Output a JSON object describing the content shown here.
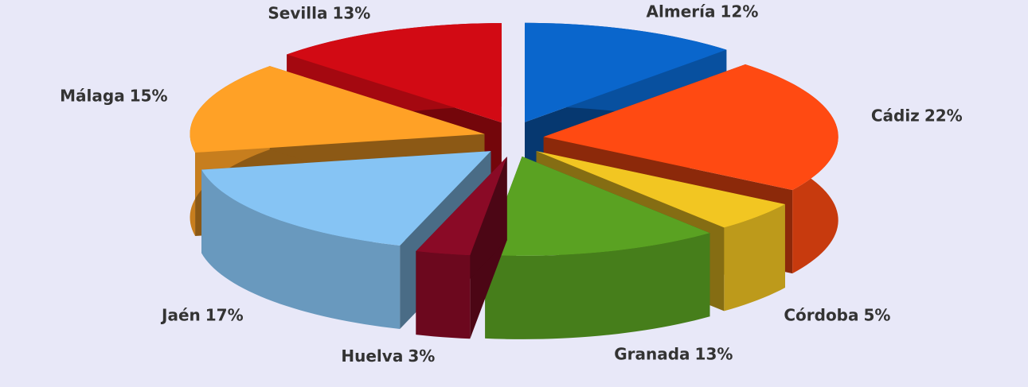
{
  "chart_data": {
    "type": "pie",
    "categories": [
      "Almería",
      "Cádiz",
      "Córdoba",
      "Granada",
      "Huelva",
      "Jaén",
      "Málaga",
      "Sevilla"
    ],
    "values": [
      12,
      22,
      5,
      13,
      3,
      17,
      15,
      13
    ],
    "value_labels": [
      "12%",
      "22%",
      "5%",
      "13%",
      "3%",
      "17%",
      "15%",
      "13%"
    ],
    "colors": [
      "#0a66cc",
      "#ff4a12",
      "#f2c622",
      "#5aa222",
      "#8a0a26",
      "#86c4f4",
      "#ffa126",
      "#d20a14"
    ]
  }
}
